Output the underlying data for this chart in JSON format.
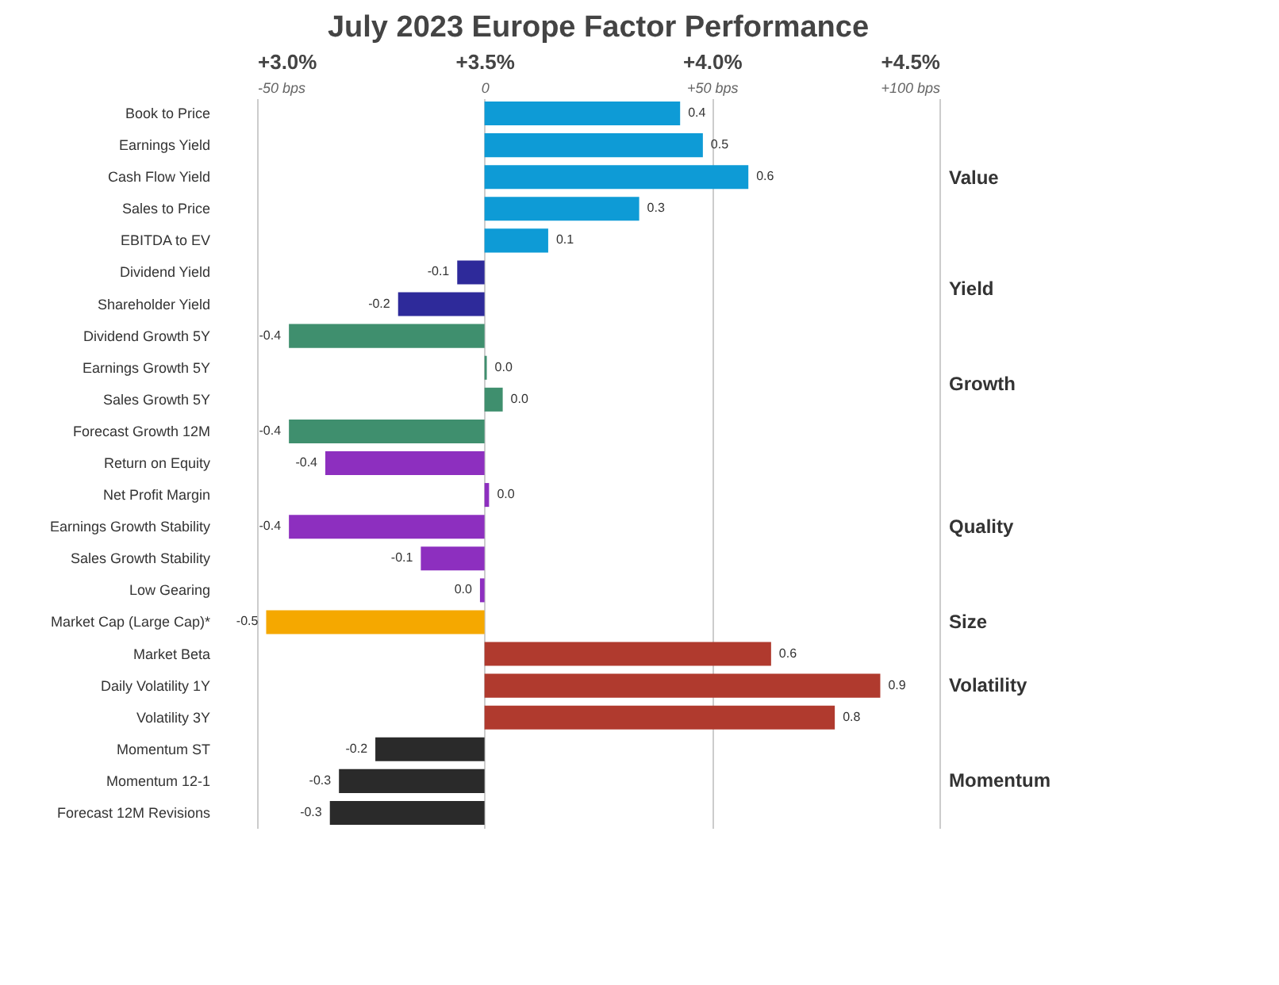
{
  "chart_data": {
    "type": "bar",
    "orientation": "horizontal",
    "title": "July 2023 Europe Factor Performance",
    "categories": [
      "Book to Price",
      "Earnings Yield",
      "Cash Flow Yield",
      "Sales to Price",
      "EBITDA to EV",
      "Dividend Yield",
      "Shareholder Yield",
      "Dividend Growth 5Y",
      "Earnings Growth 5Y",
      "Sales Growth 5Y",
      "Forecast Growth 12M",
      "Return on Equity",
      "Net Profit Margin",
      "Earnings Growth Stability",
      "Sales Growth Stability",
      "Low Gearing",
      "Market Cap (Large Cap)*",
      "Market Beta",
      "Daily Volatility 1Y",
      "Volatility 3Y",
      "Momentum ST",
      "Momentum 12-1",
      "Forecast 12M Revisions"
    ],
    "base": [
      3.5,
      3.5,
      3.5,
      3.5,
      3.5,
      3.5,
      3.5,
      3.5,
      3.5,
      3.5,
      3.5,
      3.5,
      3.5,
      3.5,
      3.5,
      3.5,
      3.5,
      3.5,
      3.5,
      3.5,
      3.5,
      3.5,
      3.5
    ],
    "values": [
      0.43,
      0.48,
      0.58,
      0.34,
      0.14,
      -0.06,
      -0.19,
      -0.43,
      0.005,
      0.04,
      -0.43,
      -0.35,
      0.01,
      -0.43,
      -0.14,
      -0.01,
      -0.48,
      0.63,
      0.87,
      0.77,
      -0.24,
      -0.32,
      -0.34
    ],
    "value_labels": [
      "0.4",
      "0.5",
      "0.6",
      "0.3",
      "0.1",
      "-0.1",
      "-0.2",
      "-0.4",
      "0.0",
      "0.0",
      "-0.4",
      "-0.4",
      "0.0",
      "-0.4",
      "-0.1",
      "0.0",
      "-0.5",
      "0.6",
      "0.9",
      "0.8",
      "-0.2",
      "-0.3",
      "-0.3"
    ],
    "colors": [
      "#0e9bd6",
      "#0e9bd6",
      "#0e9bd6",
      "#0e9bd6",
      "#0e9bd6",
      "#2e2a9a",
      "#2e2a9a",
      "#3f8f6e",
      "#3f8f6e",
      "#3f8f6e",
      "#3f8f6e",
      "#8d2fbf",
      "#8d2fbf",
      "#8d2fbf",
      "#8d2fbf",
      "#8d2fbf",
      "#f5a800",
      "#b03a2e",
      "#b03a2e",
      "#b03a2e",
      "#2a2a2a",
      "#2a2a2a",
      "#2a2a2a"
    ],
    "xlim": [
      3.0,
      4.5
    ],
    "xticks": [
      {
        "value": 3.0,
        "label": "+3.0%"
      },
      {
        "value": 3.5,
        "label": "+3.5%"
      },
      {
        "value": 4.0,
        "label": "+4.0%"
      },
      {
        "value": 4.5,
        "label": "+4.5%"
      }
    ],
    "x2lim": [
      -50,
      100
    ],
    "x2ticks": [
      {
        "value": -50,
        "label": "-50 bps"
      },
      0,
      {
        "value": 50,
        "label": "+50 bps"
      },
      {
        "value": 100,
        "label": "+100 bps"
      }
    ],
    "grid": "x",
    "annotations": [
      "Value",
      "Yield",
      "Growth",
      "Quality",
      "Size",
      "Volatility",
      "Momentum"
    ]
  }
}
